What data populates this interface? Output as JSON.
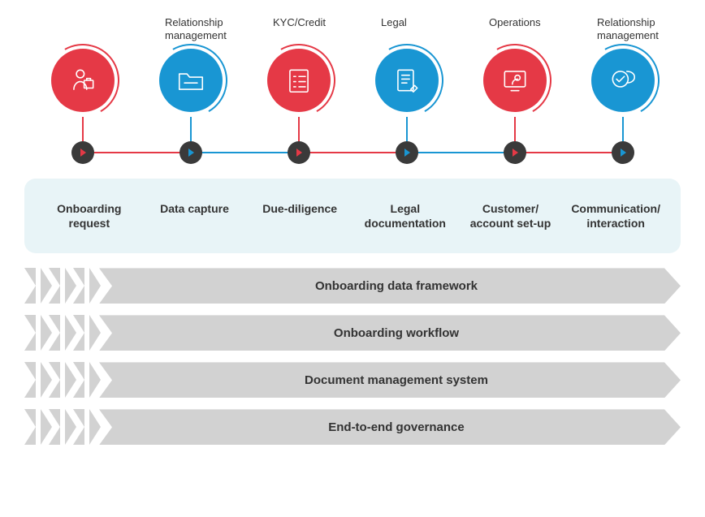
{
  "colors": {
    "red": "#e53946",
    "blue": "#1996d3",
    "nodeDark": "#3a3a3a",
    "bandBg": "#e8f4f7",
    "arrowGray": "#d2d2d2",
    "text": "#333333"
  },
  "topLabels": [
    "",
    "Relationship management",
    "KYC/Credit",
    "Legal",
    "Operations",
    "Relationship management"
  ],
  "stages": [
    {
      "label": "Onboarding request",
      "color": "#e53946",
      "icon": "person"
    },
    {
      "label": "Data capture",
      "color": "#1996d3",
      "icon": "folder"
    },
    {
      "label": "Due-diligence",
      "color": "#e53946",
      "icon": "checklist"
    },
    {
      "label": "Legal documentation",
      "color": "#1996d3",
      "icon": "document"
    },
    {
      "label": "Customer/ account set-up",
      "color": "#e53946",
      "icon": "screen"
    },
    {
      "label": "Communication/ interaction",
      "color": "#1996d3",
      "icon": "chat"
    }
  ],
  "connectors": [
    {
      "from": 0,
      "to": 1,
      "color": "#e53946"
    },
    {
      "from": 1,
      "to": 2,
      "color": "#1996d3"
    },
    {
      "from": 2,
      "to": 3,
      "color": "#e53946"
    },
    {
      "from": 3,
      "to": 4,
      "color": "#1996d3"
    },
    {
      "from": 4,
      "to": 5,
      "color": "#e53946"
    }
  ],
  "layers": [
    "Onboarding data framework",
    "Onboarding workflow",
    "Document management system",
    "End-to-end governance"
  ],
  "fontSizes": {
    "topLabel": 13,
    "stageLabel": 14,
    "layerLabel": 15
  },
  "circleDiameter": 78,
  "layerChevrons": 3
}
